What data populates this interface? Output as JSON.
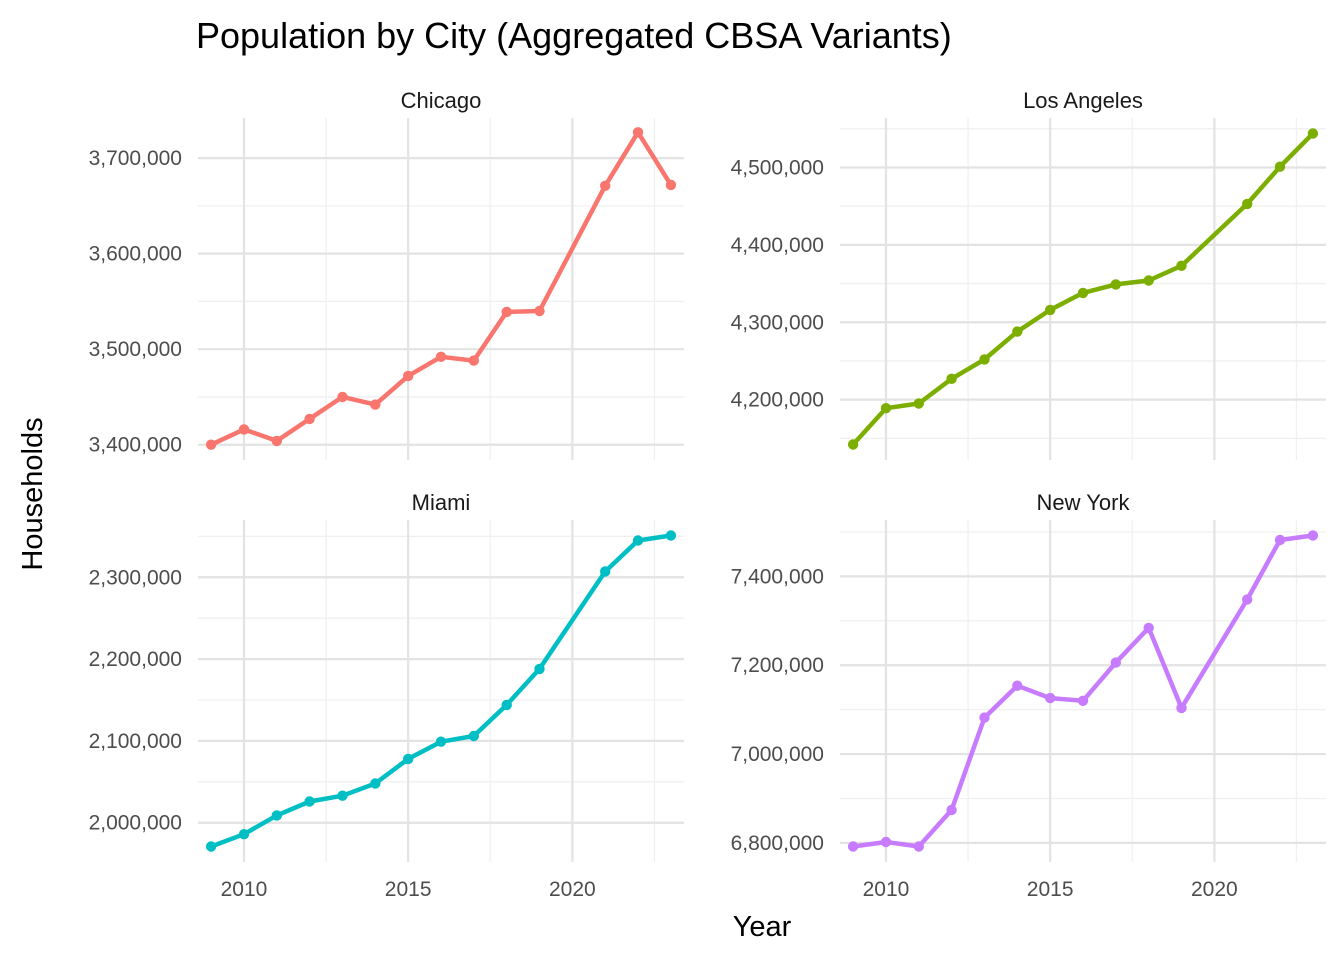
{
  "chart_data": {
    "type": "line",
    "title": "Population by City (Aggregated CBSA Variants)",
    "xlabel": "Year",
    "ylabel": "Households",
    "facets": [
      "free-y",
      "2x2"
    ],
    "x_ticks": [
      2010,
      2015,
      2020
    ],
    "xlim": [
      2008.6,
      2023.4
    ],
    "grid": true,
    "legend": "none",
    "panels": [
      {
        "name": "Chicago",
        "color": "#F8766D",
        "x": [
          2009,
          2010,
          2011,
          2012,
          2013,
          2014,
          2015,
          2016,
          2017,
          2018,
          2019,
          2021,
          2022,
          2023
        ],
        "y": [
          3400000,
          3416000,
          3404000,
          3427000,
          3450000,
          3442000,
          3472000,
          3492000,
          3488000,
          3539000,
          3540000,
          3671000,
          3727000,
          3672000
        ],
        "ylim": [
          3384000,
          3742000
        ],
        "y_ticks": [
          3400000,
          3500000,
          3600000,
          3700000
        ],
        "y_tick_labels": [
          "3,400,000",
          "3,500,000",
          "3,600,000",
          "3,700,000"
        ]
      },
      {
        "name": "Los Angeles",
        "color": "#7CAE00",
        "x": [
          2009,
          2010,
          2011,
          2012,
          2013,
          2014,
          2015,
          2016,
          2017,
          2018,
          2019,
          2021,
          2022,
          2023
        ],
        "y": [
          4142000,
          4189000,
          4195000,
          4227000,
          4252000,
          4288000,
          4316000,
          4338000,
          4349000,
          4354000,
          4373000,
          4453000,
          4501000,
          4544000
        ],
        "ylim": [
          4122000,
          4564000
        ],
        "y_ticks": [
          4200000,
          4300000,
          4400000,
          4500000
        ],
        "y_tick_labels": [
          "4,200,000",
          "4,300,000",
          "4,400,000",
          "4,500,000"
        ]
      },
      {
        "name": "Miami",
        "color": "#00BFC4",
        "x": [
          2009,
          2010,
          2011,
          2012,
          2013,
          2014,
          2015,
          2016,
          2017,
          2018,
          2019,
          2021,
          2022,
          2023
        ],
        "y": [
          1971000,
          1986000,
          2009000,
          2026000,
          2033000,
          2048000,
          2078000,
          2099000,
          2106000,
          2144000,
          2188000,
          2307000,
          2345000,
          2351000
        ],
        "ylim": [
          1952000,
          2370000
        ],
        "y_ticks": [
          2000000,
          2100000,
          2200000,
          2300000
        ],
        "y_tick_labels": [
          "2,000,000",
          "2,100,000",
          "2,200,000",
          "2,300,000"
        ]
      },
      {
        "name": "New York",
        "color": "#C77CFF",
        "x": [
          2009,
          2010,
          2011,
          2012,
          2013,
          2014,
          2015,
          2016,
          2017,
          2018,
          2019,
          2021,
          2022,
          2023
        ],
        "y": [
          6792000,
          6802000,
          6792000,
          6874000,
          7082000,
          7154000,
          7126000,
          7120000,
          7206000,
          7284000,
          7104000,
          7348000,
          7482000,
          7492000
        ],
        "ylim": [
          6757000,
          7527000
        ],
        "y_ticks": [
          6800000,
          7000000,
          7200000,
          7400000
        ],
        "y_tick_labels": [
          "6,800,000",
          "7,000,000",
          "7,200,000",
          "7,400,000"
        ]
      }
    ]
  }
}
